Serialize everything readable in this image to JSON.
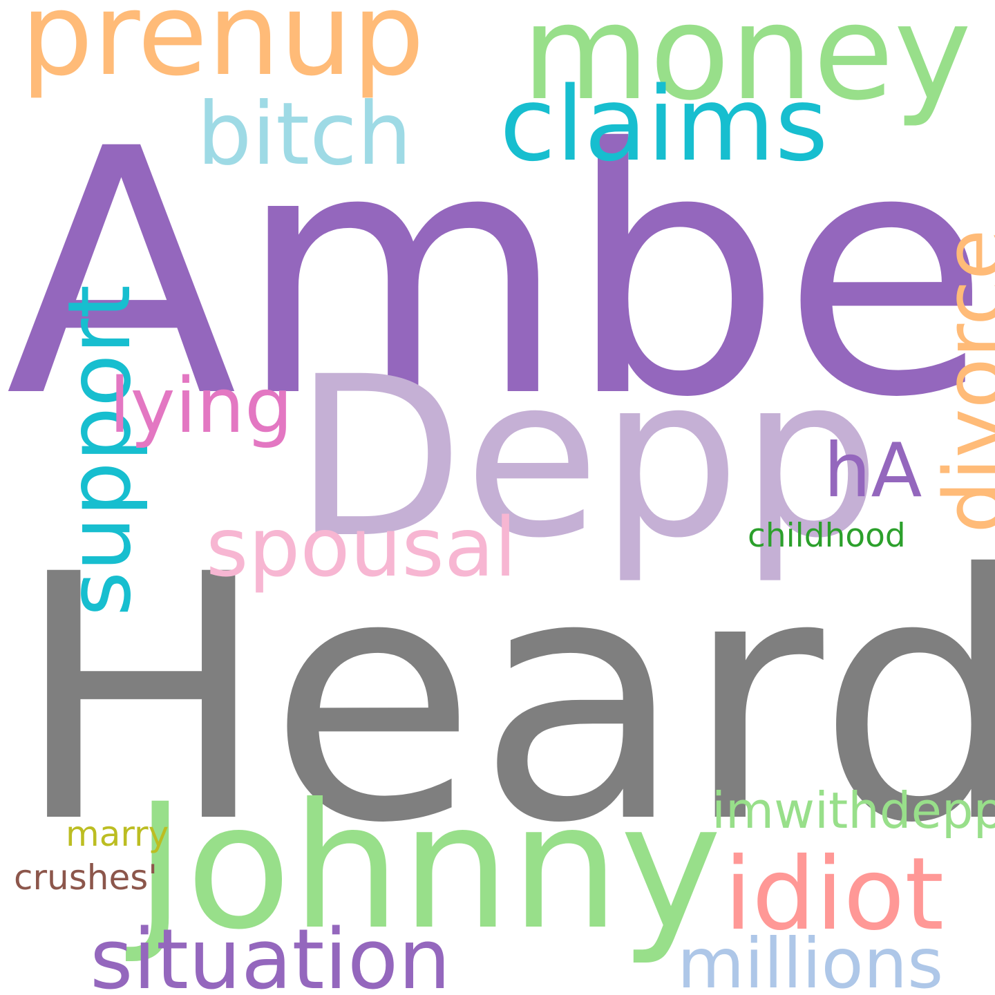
{
  "words": [
    {
      "id": "Amber",
      "text": "Amber",
      "color": "#9467bd",
      "orientation": "horizontal"
    },
    {
      "id": "Heard",
      "text": "Heard",
      "color": "#7f7f7f",
      "orientation": "horizontal"
    },
    {
      "id": "Depp",
      "text": "Depp",
      "color": "#c5b0d5",
      "orientation": "horizontal"
    },
    {
      "id": "Johnny",
      "text": "Johnny",
      "color": "#98df8a",
      "orientation": "horizontal"
    },
    {
      "id": "money",
      "text": "money",
      "color": "#98df8a",
      "orientation": "horizontal"
    },
    {
      "id": "prenup",
      "text": "prenup",
      "color": "#ffbb78",
      "orientation": "horizontal"
    },
    {
      "id": "claims",
      "text": "claims",
      "color": "#17becf",
      "orientation": "horizontal"
    },
    {
      "id": "bitch",
      "text": "bitch",
      "color": "#9edae5",
      "orientation": "horizontal"
    },
    {
      "id": "support",
      "text": "support",
      "color": "#17becf",
      "orientation": "vertical"
    },
    {
      "id": "divorce",
      "text": "divorce",
      "color": "#ffbb78",
      "orientation": "vertical"
    },
    {
      "id": "lying",
      "text": "lying",
      "color": "#e377c2",
      "orientation": "horizontal"
    },
    {
      "id": "hA",
      "text": "hA",
      "color": "#9467bd",
      "orientation": "horizontal"
    },
    {
      "id": "spousal",
      "text": "spousal",
      "color": "#f7b6d2",
      "orientation": "horizontal"
    },
    {
      "id": "childhood",
      "text": "childhood",
      "color": "#2ca02c",
      "orientation": "horizontal"
    },
    {
      "id": "idiot",
      "text": "idiot",
      "color": "#ff9896",
      "orientation": "horizontal"
    },
    {
      "id": "imwithdepp",
      "text": "imwithdepp",
      "color": "#98df8a",
      "orientation": "horizontal"
    },
    {
      "id": "situation",
      "text": "situation",
      "color": "#9467bd",
      "orientation": "horizontal"
    },
    {
      "id": "millions",
      "text": "millions",
      "color": "#aec7e8",
      "orientation": "horizontal"
    },
    {
      "id": "marry",
      "text": "marry",
      "color": "#bcbd22",
      "orientation": "horizontal"
    },
    {
      "id": "crushes",
      "text": "crushes'",
      "color": "#8c564b",
      "orientation": "horizontal"
    }
  ]
}
